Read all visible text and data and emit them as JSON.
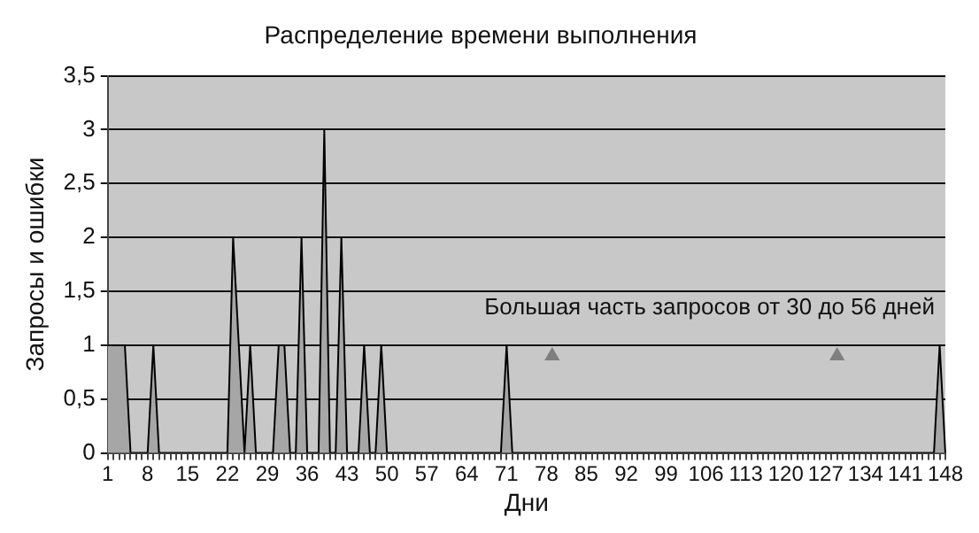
{
  "chart_data": {
    "type": "area",
    "title": "Распределение времени выполнения",
    "xlabel": "Дни",
    "ylabel": "Запросы и ошибки",
    "categories": [
      "1",
      null,
      null,
      null,
      null,
      null,
      null,
      "8",
      null,
      null,
      null,
      null,
      null,
      null,
      "15",
      null,
      null,
      null,
      null,
      null,
      null,
      "22",
      null,
      null,
      null,
      null,
      null,
      null,
      "29",
      null,
      null,
      null,
      null,
      null,
      null,
      "36",
      null,
      null,
      null,
      null,
      null,
      null,
      "43",
      null,
      null,
      null,
      null,
      null,
      null,
      "50",
      null,
      null,
      null,
      null,
      null,
      null,
      "57",
      null,
      null,
      null,
      null,
      null,
      null,
      "64",
      null,
      null,
      null,
      null,
      null,
      null,
      "71",
      null,
      null,
      null,
      null,
      null,
      null,
      "78",
      null,
      null,
      null,
      null,
      null,
      null,
      "85",
      null,
      null,
      null,
      null,
      null,
      null,
      "92",
      null,
      null,
      null,
      null,
      null,
      null,
      "99",
      null,
      null,
      null,
      null,
      null,
      null,
      "106",
      null,
      null,
      null,
      null,
      null,
      null,
      "113",
      null,
      null,
      null,
      null,
      null,
      null,
      "120",
      null,
      null,
      null,
      null,
      null,
      null,
      "127",
      null,
      null,
      null,
      null,
      null,
      null,
      "134",
      null,
      null,
      null,
      null,
      null,
      null,
      "141",
      null,
      null,
      null,
      null,
      null,
      null,
      "148"
    ],
    "series": [
      {
        "type": "area",
        "color": "#a6a6a6",
        "values": [
          1,
          1,
          1,
          1,
          0,
          0,
          0,
          0,
          1,
          0,
          0,
          0,
          0,
          0,
          0,
          0,
          0,
          0,
          0,
          0,
          0,
          0,
          2,
          1,
          0,
          1,
          0,
          0,
          0,
          0,
          1,
          1,
          0,
          0,
          2,
          0,
          0,
          0,
          3,
          0,
          0,
          2,
          0,
          0,
          0,
          1,
          0,
          0,
          1,
          0,
          0,
          0,
          0,
          0,
          0,
          0,
          0,
          0,
          0,
          0,
          0,
          0,
          0,
          0,
          0,
          0,
          0,
          0,
          0,
          0,
          1,
          0,
          0,
          0,
          0,
          0,
          0,
          0,
          0,
          0,
          0,
          0,
          0,
          0,
          0,
          0,
          0,
          0,
          0,
          0,
          0,
          0,
          0,
          0,
          0,
          0,
          0,
          0,
          0,
          0,
          0,
          0,
          0,
          0,
          0,
          0,
          0,
          0,
          0,
          0,
          0,
          0,
          0,
          0,
          0,
          0,
          0,
          0,
          0,
          0,
          0,
          0,
          0,
          0,
          0,
          0,
          0,
          0,
          0,
          0,
          0,
          0,
          0,
          0,
          0,
          0,
          0,
          0,
          0,
          0,
          0,
          0,
          0,
          0,
          0,
          0,
          1,
          0
        ]
      },
      {
        "type": "scatter",
        "color": "#7f7f7f",
        "marker": "triangle",
        "values": [
          null,
          null,
          null,
          null,
          null,
          null,
          null,
          null,
          null,
          null,
          null,
          null,
          null,
          null,
          null,
          null,
          null,
          null,
          null,
          null,
          null,
          null,
          null,
          null,
          null,
          null,
          null,
          null,
          null,
          null,
          null,
          null,
          null,
          null,
          null,
          null,
          null,
          null,
          null,
          null,
          null,
          null,
          null,
          null,
          null,
          null,
          null,
          null,
          null,
          null,
          null,
          null,
          null,
          null,
          null,
          null,
          null,
          null,
          null,
          null,
          null,
          null,
          null,
          null,
          null,
          null,
          null,
          null,
          null,
          null,
          null,
          null,
          null,
          null,
          null,
          null,
          null,
          null,
          0.9,
          null,
          null,
          null,
          null,
          null,
          null,
          null,
          null,
          null,
          null,
          null,
          null,
          null,
          null,
          null,
          null,
          null,
          null,
          null,
          null,
          null,
          null,
          null,
          null,
          null,
          null,
          null,
          null,
          null,
          null,
          null,
          null,
          null,
          null,
          null,
          null,
          null,
          null,
          null,
          null,
          null,
          null,
          null,
          null,
          null,
          null,
          null,
          null,
          null,
          0.9,
          null,
          null,
          null,
          null,
          null,
          null,
          null,
          null,
          null,
          null,
          null,
          null,
          null,
          null,
          null,
          null,
          null,
          null,
          null
        ]
      }
    ],
    "ylim": [
      0,
      3.5
    ],
    "yticks": [
      0,
      {
        "value": 0.5,
        "label": "0,5"
      },
      1,
      {
        "value": 1.5,
        "label": "1,5"
      },
      2,
      {
        "value": 2.5,
        "label": "2,5"
      },
      3,
      {
        "value": 3.5,
        "label": "3,5"
      }
    ],
    "grid": "y",
    "legend": false,
    "marker": "none",
    "annotations": [
      "Большая часть запросов от 30 до 56 дней"
    ]
  }
}
